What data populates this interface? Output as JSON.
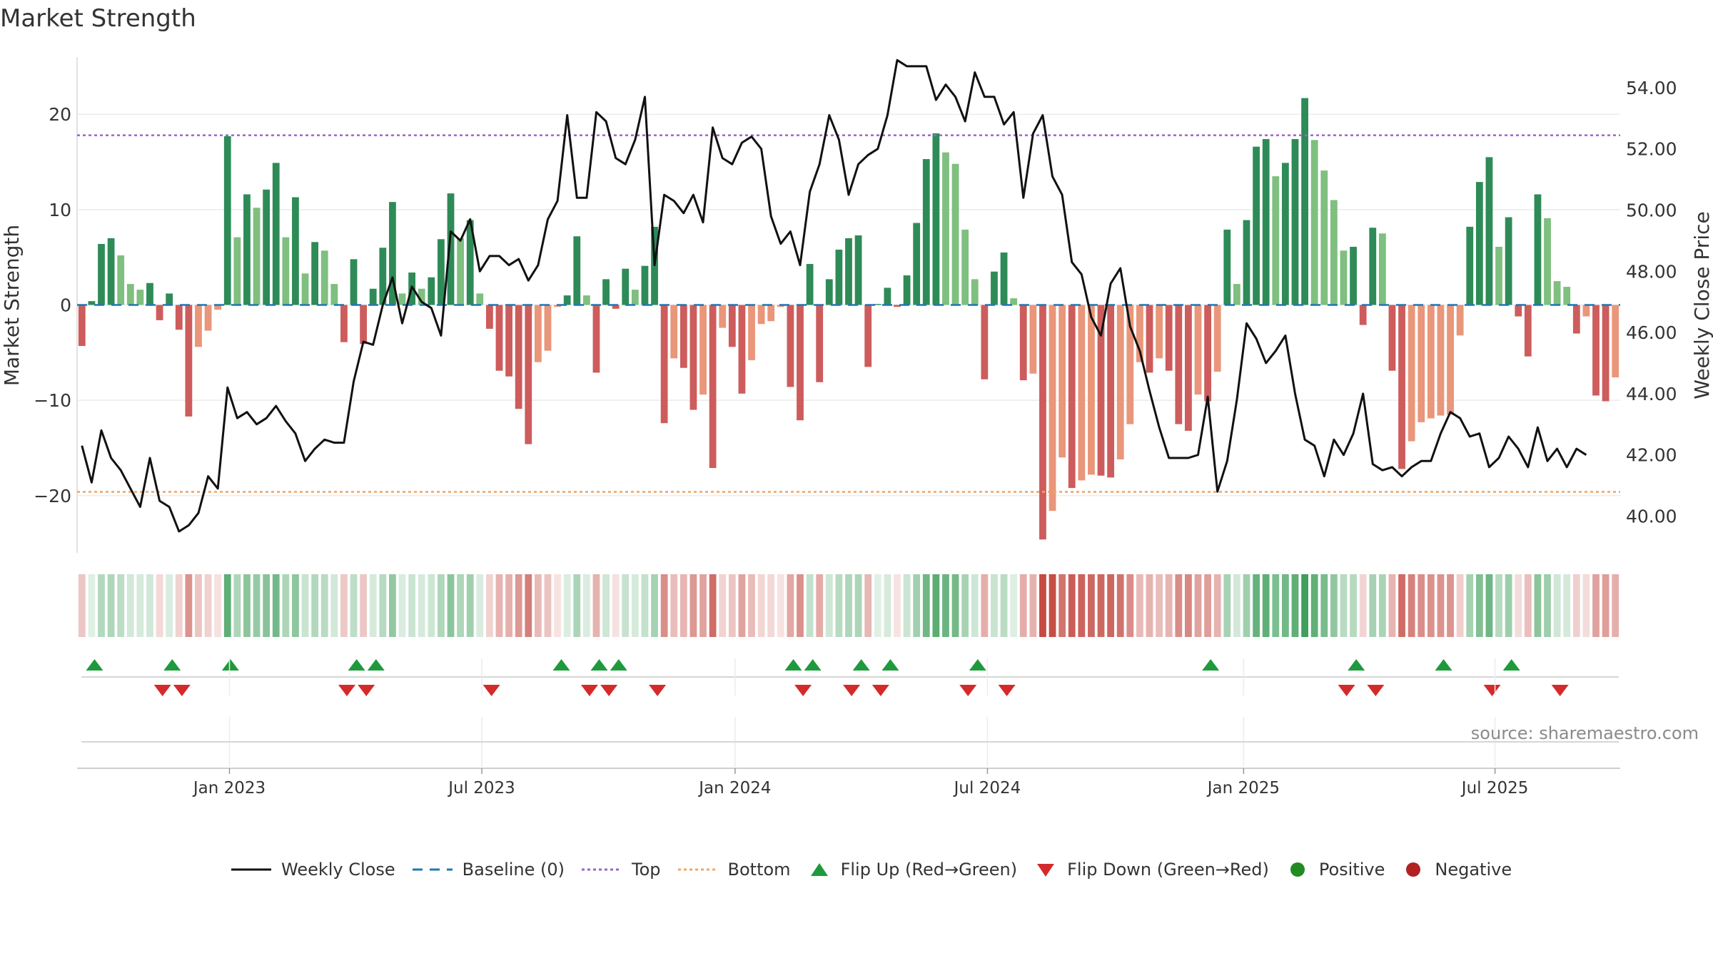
{
  "title": "Market Strength",
  "source": "source: sharemaestro.com",
  "colors": {
    "dark_green": "#2e8b57",
    "light_green": "#7fbf7f",
    "dark_red": "#cd5c5c",
    "light_red": "#e9967a",
    "price": "#111111",
    "top": "#9966cc",
    "bottom": "#f4a460",
    "baseline": "#1f77b4",
    "flip_up": "#1e9a3c",
    "flip_down": "#d42a2a",
    "positive": "#228b22",
    "negative": "#b22222"
  },
  "chart_data": {
    "type": "bar+line",
    "title": "Market Strength",
    "ylabel_left": "Market Strength",
    "ylabel_right": "Weekly Close Price",
    "yticks_left": [
      "20",
      "10",
      "0",
      "−10",
      "−20"
    ],
    "ylim_left": [
      -26,
      26
    ],
    "yticks_right": [
      "54.00",
      "52.00",
      "50.00",
      "48.00",
      "46.00",
      "44.00",
      "42.00",
      "40.00"
    ],
    "ylim_right": [
      38.8,
      55.0
    ],
    "top_line": 17.8,
    "bottom_line": -19.6,
    "x_ticks": [
      "Jan 2023",
      "Jul 2023",
      "Jan 2024",
      "Jul 2024",
      "Jan 2025",
      "Jul 2025"
    ],
    "x_tick_index": [
      15.2,
      41.2,
      67.3,
      93.3,
      119.7,
      145.6
    ],
    "strength": [
      -4.3,
      0.4,
      6.4,
      7.0,
      5.2,
      2.2,
      1.6,
      2.3,
      -1.6,
      1.2,
      -2.6,
      -11.7,
      -4.4,
      -2.7,
      -0.5,
      17.7,
      7.1,
      11.6,
      10.2,
      12.1,
      14.9,
      7.1,
      11.3,
      3.3,
      6.6,
      5.7,
      2.2,
      -3.9,
      4.8,
      -4.1,
      1.7,
      6.0,
      10.8,
      1.2,
      3.4,
      1.7,
      2.9,
      6.9,
      11.7,
      7.0,
      8.9,
      1.2,
      -2.5,
      -6.9,
      -7.5,
      -10.9,
      -14.6,
      -6.0,
      -4.8,
      -0.2,
      1.0,
      7.2,
      1.0,
      -7.1,
      2.7,
      -0.4,
      3.8,
      1.6,
      4.1,
      8.2,
      -12.4,
      -5.6,
      -6.6,
      -11.0,
      -9.4,
      -17.1,
      -2.4,
      -4.4,
      -9.3,
      -5.8,
      -2.0,
      -1.7,
      -0.2,
      -8.6,
      -12.1,
      4.3,
      -8.1,
      2.7,
      5.8,
      7.0,
      7.3,
      -6.5,
      0.1,
      1.8,
      -0.2,
      3.1,
      8.6,
      15.3,
      18.0,
      16.0,
      14.8,
      7.9,
      2.7,
      -7.8,
      3.5,
      5.5,
      0.7,
      -7.9,
      -7.2,
      -24.6,
      -21.6,
      -16.0,
      -19.2,
      -18.4,
      -17.8,
      -17.9,
      -18.1,
      -16.2,
      -12.5,
      -6.0,
      -7.1,
      -5.6,
      -6.9,
      -12.5,
      -13.2,
      -9.4,
      -10.1,
      -7.0,
      7.9,
      2.2,
      8.9,
      16.6,
      17.4,
      13.5,
      14.9,
      17.4,
      21.7,
      17.3,
      14.1,
      11.0,
      5.7,
      6.1,
      -2.1,
      8.1,
      7.5,
      -6.9,
      -17.2,
      -14.3,
      -12.3,
      -11.9,
      -11.6,
      -11.5,
      -3.2,
      8.2,
      12.9,
      15.5,
      6.1,
      9.2,
      -1.2,
      -5.4,
      11.6,
      9.1,
      2.5,
      1.9,
      -3.0,
      -1.2,
      -9.5,
      -10.1,
      -7.6
    ],
    "price": [
      42.3,
      41.1,
      42.8,
      41.9,
      41.5,
      40.9,
      40.3,
      41.9,
      40.5,
      40.3,
      39.5,
      39.7,
      40.1,
      41.3,
      40.9,
      44.2,
      43.2,
      43.4,
      43.0,
      43.2,
      43.6,
      43.1,
      42.7,
      41.8,
      42.2,
      42.5,
      42.4,
      42.4,
      44.4,
      45.7,
      45.6,
      46.9,
      47.8,
      46.3,
      47.5,
      47.0,
      46.8,
      45.9,
      49.3,
      49.0,
      49.7,
      48.0,
      48.5,
      48.5,
      48.2,
      48.4,
      47.7,
      48.2,
      49.7,
      50.3,
      53.1,
      50.4,
      50.4,
      53.2,
      52.9,
      51.7,
      51.5,
      52.3,
      53.7,
      48.2,
      50.5,
      50.3,
      49.9,
      50.5,
      49.6,
      52.7,
      51.7,
      51.5,
      52.2,
      52.4,
      52.0,
      49.8,
      48.9,
      49.3,
      48.2,
      50.6,
      51.5,
      53.1,
      52.3,
      50.5,
      51.5,
      51.8,
      52.0,
      53.1,
      54.9,
      54.7,
      54.7,
      54.7,
      53.6,
      54.1,
      53.7,
      52.9,
      54.5,
      53.7,
      53.7,
      52.8,
      53.2,
      50.4,
      52.5,
      53.1,
      51.1,
      50.5,
      48.3,
      47.9,
      46.5,
      45.9,
      47.6,
      48.1,
      46.2,
      45.4,
      44.1,
      42.9,
      41.9,
      41.9,
      41.9,
      42.0,
      43.9,
      40.8,
      41.8,
      43.8,
      46.3,
      45.8,
      45.0,
      45.4,
      45.9,
      44.0,
      42.5,
      42.3,
      41.3,
      42.5,
      42.0,
      42.7,
      44.0,
      41.7,
      41.5,
      41.6,
      41.3,
      41.6,
      41.8,
      41.8,
      42.7,
      43.4,
      43.2,
      42.6,
      42.7,
      41.6,
      41.9,
      42.6,
      42.2,
      41.6,
      42.9,
      41.8,
      42.2,
      41.6,
      42.2,
      42.0
    ]
  },
  "flip_up_index": [
    1.3,
    9.3,
    15.3,
    28.3,
    30.3,
    49.4,
    53.3,
    55.3,
    73.3,
    75.3,
    80.3,
    83.3,
    92.3,
    116.3,
    131.3,
    140.3,
    147.3
  ],
  "flip_down_index": [
    8.3,
    10.3,
    27.3,
    29.3,
    42.2,
    52.3,
    54.3,
    59.3,
    74.3,
    79.3,
    82.3,
    91.3,
    95.3,
    130.3,
    133.3,
    145.3,
    152.3
  ],
  "legend": {
    "weekly_close": "Weekly Close",
    "baseline": "Baseline (0)",
    "top": "Top",
    "bottom": "Bottom",
    "flip_up": "Flip Up (Red→Green)",
    "flip_down": "Flip Down (Green→Red)",
    "positive": "Positive",
    "negative": "Negative"
  }
}
